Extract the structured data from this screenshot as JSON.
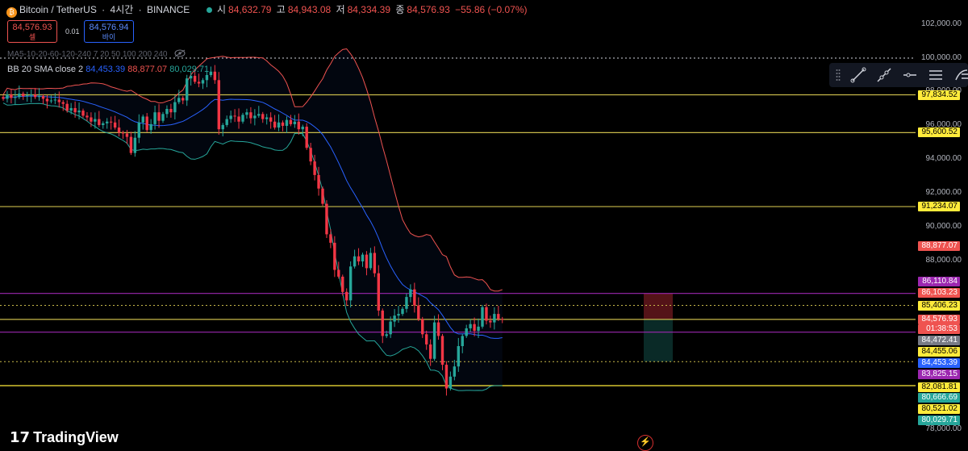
{
  "header": {
    "symbol": "Bitcoin / TetherUS",
    "separator": "·",
    "interval": "4시간",
    "exchange": "BINANCE",
    "open_label": "시",
    "open": "84,632.79",
    "high_label": "고",
    "high": "84,943.08",
    "low_label": "저",
    "low": "84,334.39",
    "close_label": "종",
    "close": "84,576.93",
    "change": "−55.86 (−0.07%)"
  },
  "trade": {
    "sell_price": "84,576.93",
    "sell_label": "셀",
    "spread": "0.01",
    "buy_price": "84,576.94",
    "buy_label": "바이"
  },
  "indicators": {
    "ma_label": "MA5-10-20-60-120-240 7 20 50 100 200 240",
    "bb_label": "BB 20 SMA close 2",
    "bb_basis": "84,453.39",
    "bb_upper": "88,877.07",
    "bb_lower": "80,029.71"
  },
  "axis_ticks": [
    "102,000.00",
    "100,000.00",
    "98,000.00",
    "96,000.00",
    "94,000.00",
    "92,000.00",
    "90,000.00",
    "88,000.00",
    "78,000.00"
  ],
  "price_labels": [
    {
      "text": "97,834.52",
      "bg": "#ffeb3b",
      "fg": "#000"
    },
    {
      "text": "95,600.52",
      "bg": "#ffeb3b",
      "fg": "#000"
    },
    {
      "text": "91,234.07",
      "bg": "#ffeb3b",
      "fg": "#000"
    },
    {
      "text": "88,877.07",
      "bg": "#ef5350",
      "fg": "#fff"
    },
    {
      "text": "86,110.84",
      "bg": "#9c27b0",
      "fg": "#fff"
    },
    {
      "text": "86,103.23",
      "bg": "#ef5350",
      "fg": "#fff"
    },
    {
      "text": "85,406.23",
      "bg": "#ffeb3b",
      "fg": "#000"
    },
    {
      "text": "84,576.93",
      "bg": "#ef5350",
      "fg": "#fff"
    },
    {
      "text": "01:38:53",
      "bg": "#ef5350",
      "fg": "#fff"
    },
    {
      "text": "84,472.41",
      "bg": "#787b86",
      "fg": "#fff"
    },
    {
      "text": "84,455.06",
      "bg": "#ffeb3b",
      "fg": "#000"
    },
    {
      "text": "84,453.39",
      "bg": "#2962ff",
      "fg": "#fff"
    },
    {
      "text": "83,825.15",
      "bg": "#9c27b0",
      "fg": "#fff"
    },
    {
      "text": "82,081.81",
      "bg": "#ffeb3b",
      "fg": "#000"
    },
    {
      "text": "80,666.69",
      "bg": "#26a69a",
      "fg": "#fff"
    },
    {
      "text": "80,521.02",
      "bg": "#ffeb3b",
      "fg": "#000"
    },
    {
      "text": "80,029.71",
      "bg": "#26a69a",
      "fg": "#fff"
    }
  ],
  "horizontal_lines": [
    {
      "price": 97834.52,
      "color": "#c7b94a",
      "style": "solid"
    },
    {
      "price": 95600.52,
      "color": "#c7b94a",
      "style": "solid"
    },
    {
      "price": 91234.07,
      "color": "#c7b94a",
      "style": "solid"
    },
    {
      "price": 86110.84,
      "color": "#9c27b0",
      "style": "solid"
    },
    {
      "price": 85406.23,
      "color": "#c7b94a",
      "style": "dotted"
    },
    {
      "price": 84576.93,
      "color": "#c7b94a",
      "style": "solid"
    },
    {
      "price": 83825.15,
      "color": "#9c27b0",
      "style": "solid"
    },
    {
      "price": 82081.81,
      "color": "#c7b94a",
      "style": "dotted"
    },
    {
      "price": 80666.69,
      "color": "#ffeb3b",
      "style": "solid"
    },
    {
      "price": 100000,
      "color": "#d1d4dc",
      "style": "dotted"
    }
  ],
  "toolbar": [
    "grip-icon",
    "trendline-icon",
    "ray-icon",
    "horizontal-ray-icon",
    "lines-icon",
    "fib-icon"
  ],
  "brand": {
    "logo_text": "TradingView"
  },
  "colors": {
    "up": "#26a69a",
    "down": "#f23645",
    "bb_basis": "#2962ff",
    "bb_upper": "#ef5350",
    "bb_lower": "#26a69a"
  }
}
